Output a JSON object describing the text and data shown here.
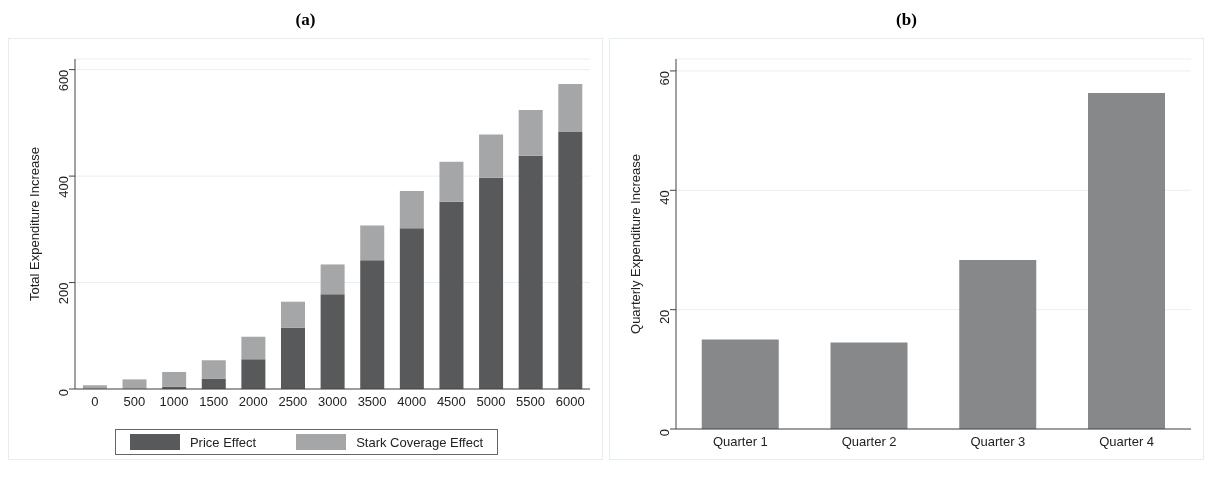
{
  "chart_data": [
    {
      "type": "bar",
      "title": "(a)",
      "ylabel": "Total Expenditure Increase",
      "categories": [
        "0",
        "500",
        "1000",
        "1500",
        "2000",
        "2500",
        "3000",
        "3500",
        "4000",
        "4500",
        "5000",
        "5500",
        "6000"
      ],
      "stacked": true,
      "series": [
        {
          "name": "Price Effect",
          "color": "#58595b",
          "values": [
            0,
            0,
            4,
            19,
            56,
            115,
            178,
            242,
            302,
            352,
            397,
            438,
            484
          ]
        },
        {
          "name": "Stark Coverage Effect",
          "color": "#a5a6a8",
          "values": [
            7,
            18,
            28,
            35,
            42,
            49,
            56,
            65,
            70,
            75,
            81,
            86,
            89
          ]
        }
      ],
      "ylim": [
        0,
        620
      ],
      "yticks": [
        0,
        200,
        400,
        600
      ],
      "grid": "y",
      "legend": "bottom"
    },
    {
      "type": "bar",
      "title": "(b)",
      "ylabel": "Quarterly Expenditure Increase",
      "categories": [
        "Quarter 1",
        "Quarter 2",
        "Quarter 3",
        "Quarter 4"
      ],
      "values": [
        15.0,
        14.5,
        28.3,
        56.3
      ],
      "color": "#86888a",
      "ylim": [
        0,
        62
      ],
      "yticks": [
        0,
        20,
        40,
        60
      ],
      "grid": "y"
    }
  ]
}
